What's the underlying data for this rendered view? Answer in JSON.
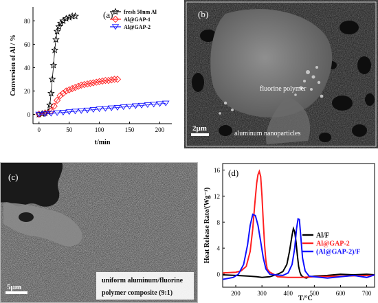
{
  "panels": {
    "a": {
      "tag": "(a)"
    },
    "b": {
      "tag": "(b)",
      "label_polymer": "fluorine polymer",
      "label_particles": "aluminum nanoparticles",
      "scale_bar": "2μm"
    },
    "c": {
      "tag": "(c)",
      "scale_bar": "5μm",
      "caption_line1": "uniform aluminum/fluorine",
      "caption_line2": "polymer composite (9:1)"
    },
    "d": {
      "tag": "(d)"
    }
  },
  "colors": {
    "black": "#000000",
    "red": "#ff2020",
    "blue": "#1010ff",
    "sem_dark": "#3a3a3a",
    "sem_light": "#9a9a9a"
  },
  "chart_data": [
    {
      "id": "a",
      "type": "line",
      "title": "",
      "xlabel": "t/min",
      "ylabel": "Conversion of Al / %",
      "xlim": [
        -10,
        220
      ],
      "ylim": [
        -8,
        92
      ],
      "xticks": [
        0,
        50,
        100,
        150,
        200
      ],
      "yticks": [
        0,
        20,
        40,
        60,
        80
      ],
      "legend_position": "top-right",
      "series": [
        {
          "name": "fresh 50nm Al",
          "marker": "star",
          "color": "#000000",
          "x": [
            0,
            5,
            10,
            15,
            18,
            20,
            22,
            24,
            26,
            28,
            30,
            33,
            36,
            40,
            45,
            50,
            55,
            60
          ],
          "y": [
            0,
            0.5,
            1,
            2,
            8,
            18,
            30,
            42,
            55,
            64,
            71,
            75,
            78,
            80,
            82,
            83,
            84,
            84
          ]
        },
        {
          "name": "Al@GAP-1",
          "marker": "diamond",
          "color": "#ff2020",
          "x": [
            0,
            10,
            20,
            25,
            30,
            35,
            40,
            45,
            50,
            55,
            60,
            65,
            70,
            75,
            80,
            85,
            90,
            95,
            100,
            105,
            110,
            115,
            120,
            125,
            130
          ],
          "y": [
            0,
            1,
            3,
            7,
            12,
            16,
            18,
            20,
            21,
            22,
            23,
            24,
            25,
            25.5,
            26,
            26.5,
            27,
            27.5,
            28,
            28.5,
            29,
            29,
            29.5,
            30,
            30
          ]
        },
        {
          "name": "Al@GAP-2",
          "marker": "triangle-down",
          "color": "#1010ff",
          "x": [
            0,
            10,
            20,
            30,
            40,
            50,
            60,
            70,
            80,
            90,
            100,
            110,
            120,
            130,
            140,
            150,
            160,
            170,
            180,
            190,
            200,
            210
          ],
          "y": [
            0,
            0.3,
            0.7,
            1.2,
            1.6,
            2.1,
            2.6,
            3,
            3.5,
            4,
            4.5,
            4.9,
            5.4,
            5.8,
            6.3,
            6.7,
            7.2,
            7.6,
            8.1,
            8.5,
            9,
            9.5
          ]
        }
      ]
    },
    {
      "id": "d",
      "type": "line",
      "title": "",
      "xlabel": "T/°C",
      "ylabel": "Heat Release Rate/(Wg⁻¹)",
      "xlim": [
        150,
        730
      ],
      "ylim": [
        -2,
        17
      ],
      "xticks": [
        200,
        300,
        400,
        500,
        600,
        700
      ],
      "yticks": [
        0,
        4,
        8,
        12,
        16
      ],
      "legend_position": "right",
      "series": [
        {
          "name": "Al/F",
          "color": "#000000",
          "x": [
            150,
            200,
            250,
            280,
            300,
            330,
            360,
            380,
            395,
            405,
            415,
            420,
            425,
            430,
            435,
            440,
            445,
            450,
            460,
            470,
            480,
            500,
            550,
            600,
            650,
            700,
            730
          ],
          "y": [
            -0.1,
            -0.2,
            -0.3,
            -0.4,
            -0.5,
            -0.4,
            0,
            0.4,
            1.5,
            3.5,
            6,
            7,
            6.5,
            5,
            3,
            1.2,
            0.3,
            -0.2,
            -0.5,
            -0.6,
            -0.4,
            -0.3,
            -0.2,
            0,
            -0.1,
            0,
            -0.1
          ]
        },
        {
          "name": "Al@GAP-2",
          "color": "#ff2020",
          "x": [
            150,
            200,
            220,
            240,
            255,
            265,
            272,
            280,
            285,
            290,
            295,
            300,
            305,
            310,
            315,
            320,
            330,
            345,
            360,
            400,
            450,
            500,
            600,
            700,
            730
          ],
          "y": [
            0.2,
            0.3,
            0.5,
            1.2,
            3.5,
            7,
            10.5,
            14,
            15.3,
            15.8,
            15,
            12,
            8,
            4.5,
            2,
            0.8,
            0.3,
            0,
            -0.4,
            -0.5,
            -0.5,
            -0.4,
            -0.3,
            -0.2,
            -0.2
          ]
        },
        {
          "name": "(Al@GAP-2)/F",
          "color": "#1010ff",
          "x": [
            150,
            190,
            210,
            230,
            245,
            255,
            265,
            275,
            285,
            295,
            305,
            315,
            330,
            350,
            380,
            400,
            415,
            425,
            432,
            438,
            443,
            448,
            455,
            465,
            480,
            500,
            550,
            600,
            650,
            700,
            730
          ],
          "y": [
            -0.8,
            -0.5,
            0,
            1.5,
            4.5,
            7.5,
            9.2,
            9,
            7.5,
            5,
            2.5,
            0.8,
            0,
            -0.1,
            -0.2,
            0.2,
            1.5,
            4,
            7,
            8.5,
            8.4,
            6,
            2.5,
            0.5,
            -0.3,
            -0.4,
            -0.6,
            -0.4,
            -0.2,
            -0.5,
            -0.1
          ]
        }
      ]
    }
  ]
}
